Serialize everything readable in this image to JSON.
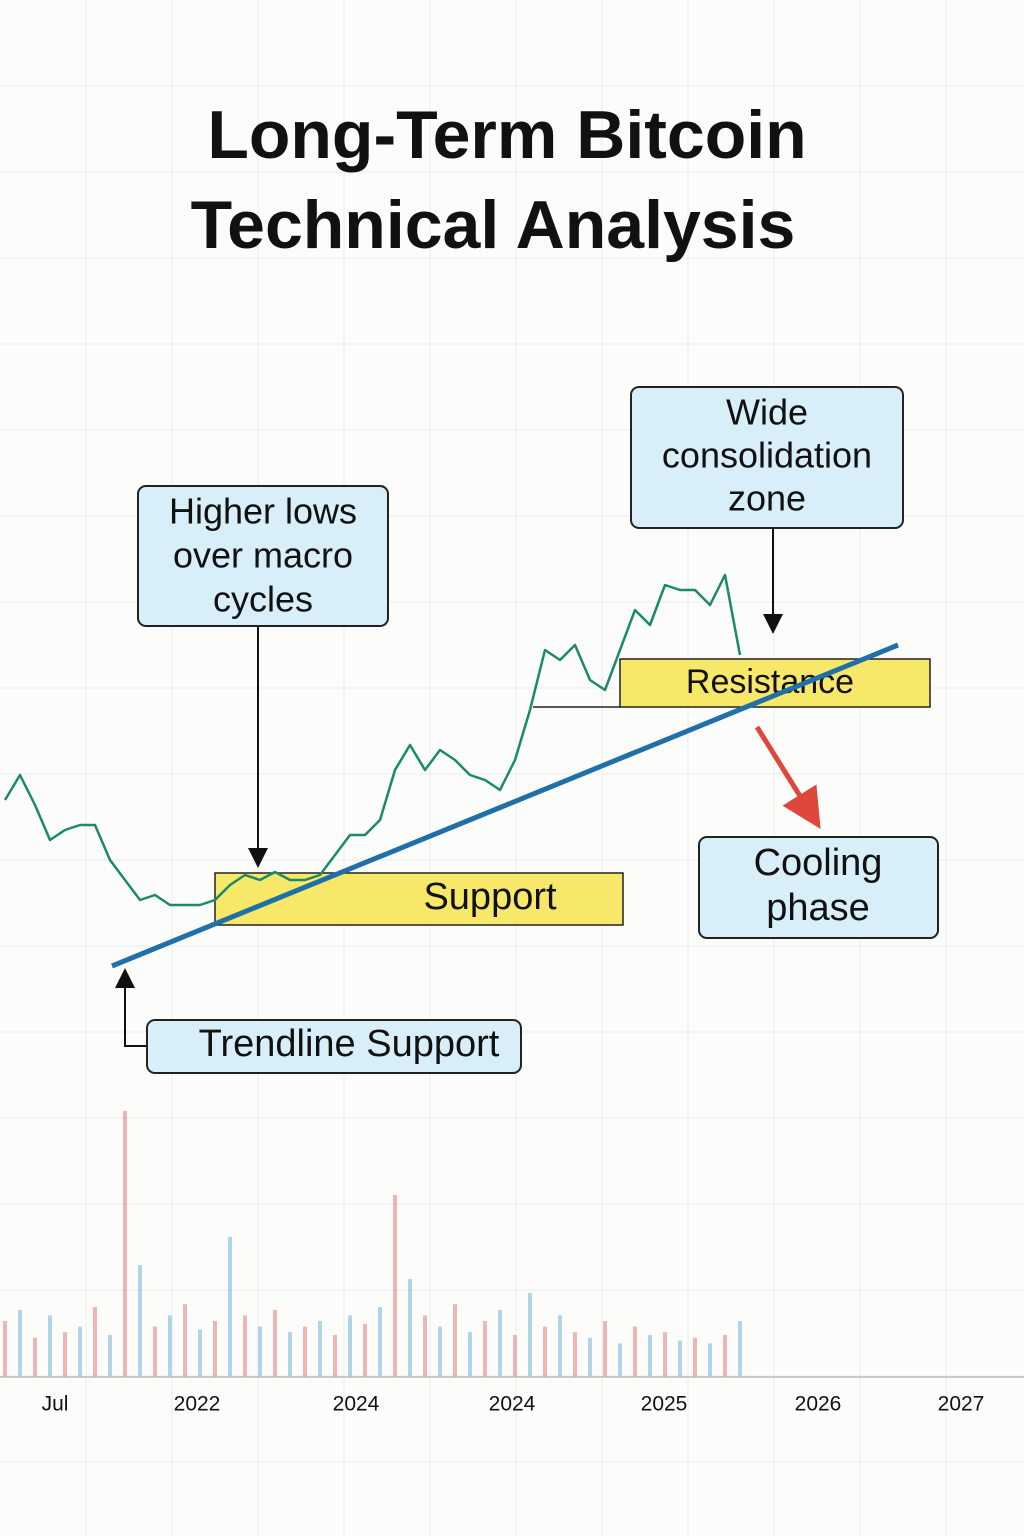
{
  "chart_data": {
    "type": "line",
    "title": [
      "Long-Term Bitcoin",
      "Technical Analysis"
    ],
    "values": [
      40,
      45,
      39,
      32,
      34,
      35,
      35,
      28,
      24,
      20,
      21,
      19,
      19,
      19,
      20,
      23,
      25,
      24,
      25.6,
      24,
      24,
      25,
      29,
      33,
      33,
      36,
      46,
      51,
      46,
      50,
      48,
      45,
      44,
      42,
      48,
      58,
      70,
      68,
      71,
      64,
      62,
      70,
      78,
      75,
      83,
      82,
      82,
      79,
      85,
      69
    ],
    "color": "#1a8a6a",
    "ylim": [
      0,
      100
    ],
    "volume": {
      "values": [
        20,
        24,
        14,
        22,
        16,
        18,
        25,
        15,
        95,
        40,
        18,
        22,
        26,
        17,
        20,
        50,
        22,
        18,
        24,
        16,
        18,
        20,
        15,
        22,
        19,
        25,
        65,
        35,
        22,
        18,
        26,
        16,
        20,
        24,
        15,
        30,
        18,
        22,
        16,
        14,
        20,
        12,
        18,
        15,
        16,
        13,
        14,
        12,
        15,
        20
      ],
      "colors": [
        "#e8a4a4",
        "#9ccbe2"
      ],
      "ylim": [
        0,
        100
      ]
    },
    "x_labels": [
      "Jul",
      "2022",
      "2024",
      "2024",
      "2025",
      "2026",
      "2027"
    ],
    "trendline_color": "#1f6fa8",
    "zones": {
      "support": "Support",
      "resistance": "Resistance"
    },
    "annotations": {
      "higher_lows": [
        "Higher lows",
        "over macro",
        "cycles"
      ],
      "consolidation": [
        "Wide",
        "consolidation",
        "zone"
      ],
      "cooling": [
        "Cooling",
        "phase"
      ],
      "trendline": [
        "Trendline Support"
      ]
    }
  }
}
